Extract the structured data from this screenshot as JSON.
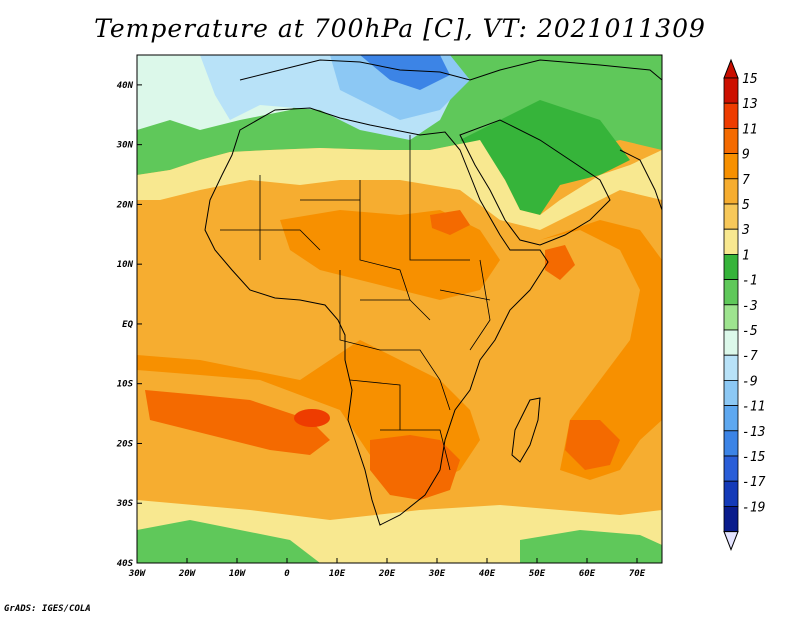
{
  "title": "Temperature at 700hPa [C], VT: 2021011309",
  "footer": "GrADS: IGES/COLA",
  "map": {
    "lon_range": [
      -30,
      75
    ],
    "lat_range": [
      -40,
      45
    ],
    "lon_ticks": [
      {
        "value": -30,
        "label": "30W"
      },
      {
        "value": -20,
        "label": "20W"
      },
      {
        "value": -10,
        "label": "10W"
      },
      {
        "value": 0,
        "label": "0"
      },
      {
        "value": 10,
        "label": "10E"
      },
      {
        "value": 20,
        "label": "20E"
      },
      {
        "value": 30,
        "label": "30E"
      },
      {
        "value": 40,
        "label": "40E"
      },
      {
        "value": 50,
        "label": "50E"
      },
      {
        "value": 60,
        "label": "60E"
      },
      {
        "value": 70,
        "label": "70E"
      }
    ],
    "lat_ticks": [
      {
        "value": 40,
        "label": "40N"
      },
      {
        "value": 30,
        "label": "30N"
      },
      {
        "value": 20,
        "label": "20N"
      },
      {
        "value": 10,
        "label": "10N"
      },
      {
        "value": 0,
        "label": "EQ"
      },
      {
        "value": -10,
        "label": "10S"
      },
      {
        "value": -20,
        "label": "20S"
      },
      {
        "value": -30,
        "label": "30S"
      },
      {
        "value": -40,
        "label": "40S"
      }
    ]
  },
  "colorbar": {
    "labels": [
      "15",
      "13",
      "11",
      "9",
      "7",
      "5",
      "3",
      "1",
      "-1",
      "-3",
      "-5",
      "-7",
      "-9",
      "-11",
      "-13",
      "-15",
      "-17",
      "-19"
    ],
    "colors": [
      "#cc1000",
      "#ee3c00",
      "#f46a00",
      "#f79000",
      "#f6ad30",
      "#f7c85a",
      "#f8e890",
      "#36b43a",
      "#5fc85a",
      "#9ee48f",
      "#dcf8ea",
      "#b8e2f8",
      "#8cc8f4",
      "#5ea8f0",
      "#3c84e6",
      "#2a5ed8",
      "#143ab8",
      "#0a1c8c"
    ]
  }
}
